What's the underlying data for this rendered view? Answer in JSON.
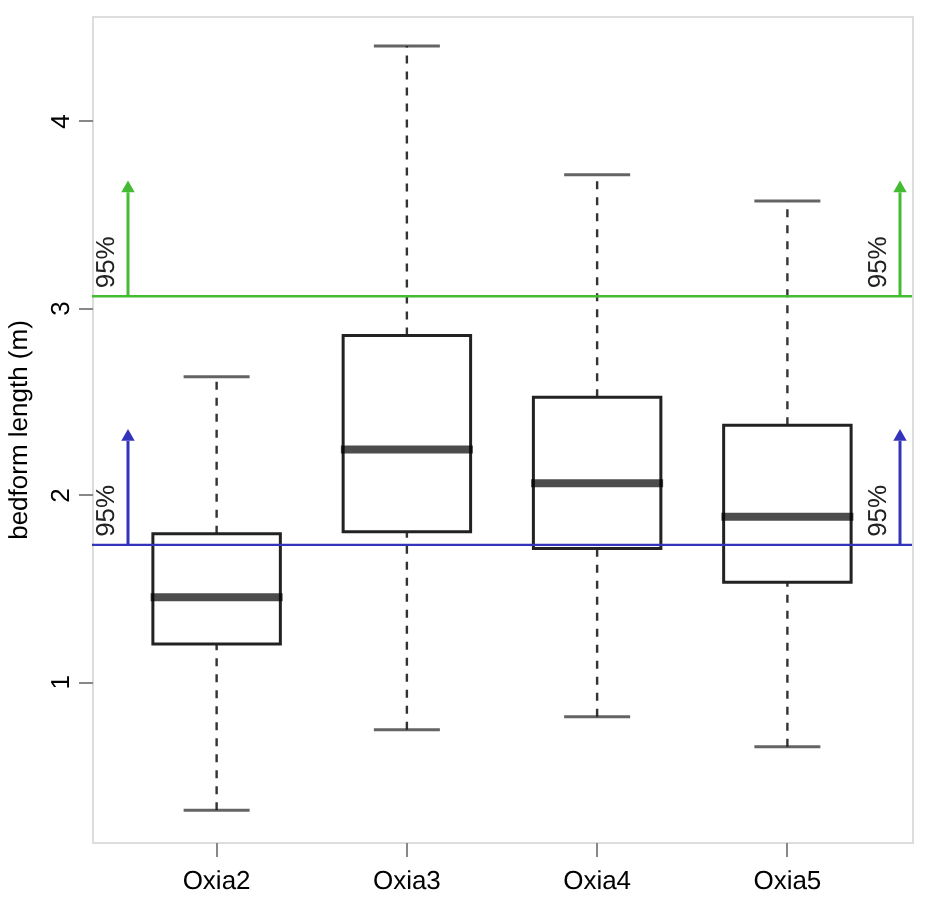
{
  "chart_data": {
    "type": "box",
    "ylabel": "bedform length (m)",
    "categories": [
      "Oxia2",
      "Oxia3",
      "Oxia4",
      "Oxia5"
    ],
    "boxes": [
      {
        "low": 0.31,
        "q1": 1.2,
        "median": 1.45,
        "q3": 1.79,
        "high": 2.63
      },
      {
        "low": 0.74,
        "q1": 1.8,
        "median": 2.24,
        "q3": 2.85,
        "high": 4.4
      },
      {
        "low": 0.81,
        "q1": 1.71,
        "median": 2.06,
        "q3": 2.52,
        "high": 3.71
      },
      {
        "low": 0.65,
        "q1": 1.53,
        "median": 1.88,
        "q3": 2.37,
        "high": 3.57
      }
    ],
    "ylim": [
      0.14,
      4.56
    ],
    "yticks": [
      1,
      2,
      3,
      4
    ],
    "grid": false,
    "ref_lines": [
      {
        "axis": "y",
        "value": 3.06,
        "color": "#44bb33"
      },
      {
        "axis": "y",
        "value": 1.73,
        "color": "#3333bb"
      }
    ],
    "annotations": [
      {
        "text": "95%",
        "y": 3.06
      },
      {
        "text": "95%",
        "y": 1.73
      }
    ]
  }
}
